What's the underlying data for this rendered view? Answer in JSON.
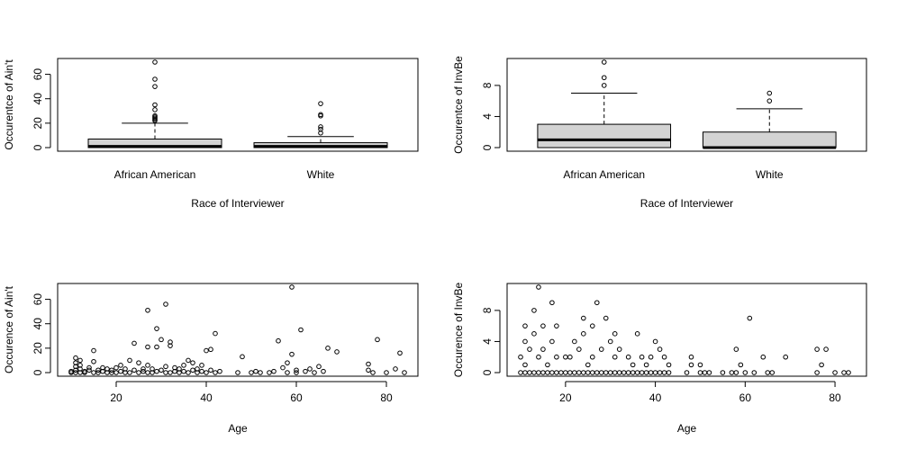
{
  "chart_data": [
    {
      "type": "boxplot",
      "xlabel": "Race of Interviewer",
      "ylabel": "Occurentce of Ain't",
      "ylim": [
        0,
        70
      ],
      "yticks": [
        0,
        20,
        40,
        60
      ],
      "categories": [
        "African American",
        "White"
      ],
      "boxes": [
        {
          "min": 0,
          "q1": 0,
          "median": 1,
          "q3": 7,
          "max": 20,
          "outliers": [
            22,
            23,
            24,
            25,
            26,
            31,
            35,
            50,
            56,
            70
          ]
        },
        {
          "min": 0,
          "q1": 0,
          "median": 1,
          "q3": 4,
          "max": 9,
          "outliers": [
            12,
            15,
            17,
            26,
            27,
            36
          ]
        }
      ]
    },
    {
      "type": "boxplot",
      "xlabel": "Race of Interviewer",
      "ylabel": "Occurentce of InvBe",
      "ylim": [
        0,
        11
      ],
      "yticks": [
        0,
        4,
        8
      ],
      "categories": [
        "African American",
        "White"
      ],
      "boxes": [
        {
          "min": 0,
          "q1": 0,
          "median": 1,
          "q3": 3,
          "max": 7,
          "outliers": [
            8,
            9,
            11
          ]
        },
        {
          "min": 0,
          "q1": 0,
          "median": 0,
          "q3": 2,
          "max": 5,
          "outliers": [
            6,
            7
          ]
        }
      ]
    },
    {
      "type": "scatter",
      "xlabel": "Age",
      "ylabel": "Occurence of Ain't",
      "xlim": [
        10,
        84
      ],
      "ylim": [
        0,
        70
      ],
      "xticks": [
        20,
        40,
        60,
        80
      ],
      "yticks": [
        0,
        20,
        40,
        60
      ],
      "points": [
        [
          10,
          0
        ],
        [
          10,
          1
        ],
        [
          11,
          0
        ],
        [
          11,
          2
        ],
        [
          11,
          5
        ],
        [
          11,
          8
        ],
        [
          11,
          12
        ],
        [
          12,
          0
        ],
        [
          12,
          3
        ],
        [
          12,
          6
        ],
        [
          12,
          10
        ],
        [
          13,
          0
        ],
        [
          13,
          1
        ],
        [
          14,
          2
        ],
        [
          14,
          4
        ],
        [
          15,
          0
        ],
        [
          15,
          9
        ],
        [
          15,
          18
        ],
        [
          16,
          0
        ],
        [
          16,
          2
        ],
        [
          17,
          1
        ],
        [
          17,
          4
        ],
        [
          18,
          0
        ],
        [
          18,
          3
        ],
        [
          19,
          0
        ],
        [
          19,
          2
        ],
        [
          20,
          0
        ],
        [
          20,
          4
        ],
        [
          21,
          1
        ],
        [
          21,
          6
        ],
        [
          22,
          0
        ],
        [
          22,
          3
        ],
        [
          23,
          0
        ],
        [
          23,
          10
        ],
        [
          24,
          2
        ],
        [
          24,
          24
        ],
        [
          25,
          0
        ],
        [
          25,
          8
        ],
        [
          26,
          1
        ],
        [
          26,
          3
        ],
        [
          27,
          0
        ],
        [
          27,
          6
        ],
        [
          27,
          21
        ],
        [
          27,
          51
        ],
        [
          28,
          0
        ],
        [
          28,
          3
        ],
        [
          29,
          1
        ],
        [
          29,
          21
        ],
        [
          29,
          36
        ],
        [
          30,
          2
        ],
        [
          30,
          27
        ],
        [
          31,
          0
        ],
        [
          31,
          5
        ],
        [
          31,
          56
        ],
        [
          32,
          0
        ],
        [
          32,
          22
        ],
        [
          32,
          25
        ],
        [
          33,
          1
        ],
        [
          33,
          4
        ],
        [
          34,
          0
        ],
        [
          34,
          3
        ],
        [
          35,
          1
        ],
        [
          35,
          6
        ],
        [
          36,
          0
        ],
        [
          36,
          10
        ],
        [
          37,
          2
        ],
        [
          37,
          8
        ],
        [
          38,
          0
        ],
        [
          38,
          3
        ],
        [
          39,
          1
        ],
        [
          39,
          6
        ],
        [
          40,
          0
        ],
        [
          40,
          18
        ],
        [
          41,
          2
        ],
        [
          41,
          19
        ],
        [
          42,
          0
        ],
        [
          42,
          32
        ],
        [
          43,
          1
        ],
        [
          47,
          0
        ],
        [
          48,
          13
        ],
        [
          50,
          0
        ],
        [
          51,
          1
        ],
        [
          52,
          0
        ],
        [
          54,
          0
        ],
        [
          55,
          1
        ],
        [
          56,
          26
        ],
        [
          57,
          4
        ],
        [
          58,
          0
        ],
        [
          58,
          8
        ],
        [
          59,
          15
        ],
        [
          59,
          70
        ],
        [
          60,
          0
        ],
        [
          60,
          2
        ],
        [
          61,
          35
        ],
        [
          62,
          1
        ],
        [
          63,
          3
        ],
        [
          64,
          0
        ],
        [
          65,
          5
        ],
        [
          66,
          1
        ],
        [
          67,
          20
        ],
        [
          69,
          17
        ],
        [
          76,
          2
        ],
        [
          76,
          7
        ],
        [
          77,
          0
        ],
        [
          78,
          27
        ],
        [
          80,
          0
        ],
        [
          82,
          3
        ],
        [
          83,
          16
        ],
        [
          84,
          0
        ]
      ]
    },
    {
      "type": "scatter",
      "xlabel": "Age",
      "ylabel": "Occurence of InvBe",
      "xlim": [
        10,
        84
      ],
      "ylim": [
        0,
        11
      ],
      "xticks": [
        20,
        40,
        60,
        80
      ],
      "yticks": [
        0,
        4,
        8
      ],
      "points": [
        [
          10,
          0
        ],
        [
          10,
          2
        ],
        [
          11,
          0
        ],
        [
          11,
          1
        ],
        [
          11,
          4
        ],
        [
          11,
          6
        ],
        [
          12,
          0
        ],
        [
          12,
          3
        ],
        [
          13,
          0
        ],
        [
          13,
          5
        ],
        [
          13,
          8
        ],
        [
          14,
          0
        ],
        [
          14,
          2
        ],
        [
          14,
          11
        ],
        [
          15,
          0
        ],
        [
          15,
          3
        ],
        [
          15,
          6
        ],
        [
          16,
          0
        ],
        [
          16,
          1
        ],
        [
          17,
          0
        ],
        [
          17,
          4
        ],
        [
          17,
          9
        ],
        [
          18,
          0
        ],
        [
          18,
          2
        ],
        [
          18,
          6
        ],
        [
          19,
          0
        ],
        [
          20,
          0
        ],
        [
          20,
          2
        ],
        [
          21,
          0
        ],
        [
          21,
          2
        ],
        [
          22,
          0
        ],
        [
          22,
          4
        ],
        [
          23,
          0
        ],
        [
          23,
          3
        ],
        [
          24,
          0
        ],
        [
          24,
          5
        ],
        [
          24,
          7
        ],
        [
          25,
          0
        ],
        [
          25,
          1
        ],
        [
          26,
          0
        ],
        [
          26,
          2
        ],
        [
          26,
          6
        ],
        [
          27,
          0
        ],
        [
          27,
          9
        ],
        [
          28,
          0
        ],
        [
          28,
          3
        ],
        [
          29,
          0
        ],
        [
          29,
          7
        ],
        [
          30,
          0
        ],
        [
          30,
          4
        ],
        [
          31,
          0
        ],
        [
          31,
          2
        ],
        [
          31,
          5
        ],
        [
          32,
          0
        ],
        [
          32,
          3
        ],
        [
          33,
          0
        ],
        [
          34,
          0
        ],
        [
          34,
          2
        ],
        [
          35,
          0
        ],
        [
          35,
          1
        ],
        [
          36,
          0
        ],
        [
          36,
          5
        ],
        [
          37,
          0
        ],
        [
          37,
          2
        ],
        [
          38,
          0
        ],
        [
          38,
          1
        ],
        [
          39,
          0
        ],
        [
          39,
          2
        ],
        [
          40,
          0
        ],
        [
          40,
          4
        ],
        [
          41,
          0
        ],
        [
          41,
          3
        ],
        [
          42,
          0
        ],
        [
          42,
          2
        ],
        [
          43,
          0
        ],
        [
          43,
          1
        ],
        [
          47,
          0
        ],
        [
          48,
          1
        ],
        [
          48,
          2
        ],
        [
          50,
          0
        ],
        [
          50,
          1
        ],
        [
          51,
          0
        ],
        [
          52,
          0
        ],
        [
          55,
          0
        ],
        [
          57,
          0
        ],
        [
          58,
          0
        ],
        [
          58,
          3
        ],
        [
          59,
          1
        ],
        [
          60,
          0
        ],
        [
          61,
          7
        ],
        [
          62,
          0
        ],
        [
          64,
          2
        ],
        [
          65,
          0
        ],
        [
          66,
          0
        ],
        [
          69,
          2
        ],
        [
          76,
          0
        ],
        [
          76,
          3
        ],
        [
          77,
          1
        ],
        [
          78,
          3
        ],
        [
          80,
          0
        ],
        [
          82,
          0
        ],
        [
          83,
          0
        ]
      ]
    }
  ]
}
